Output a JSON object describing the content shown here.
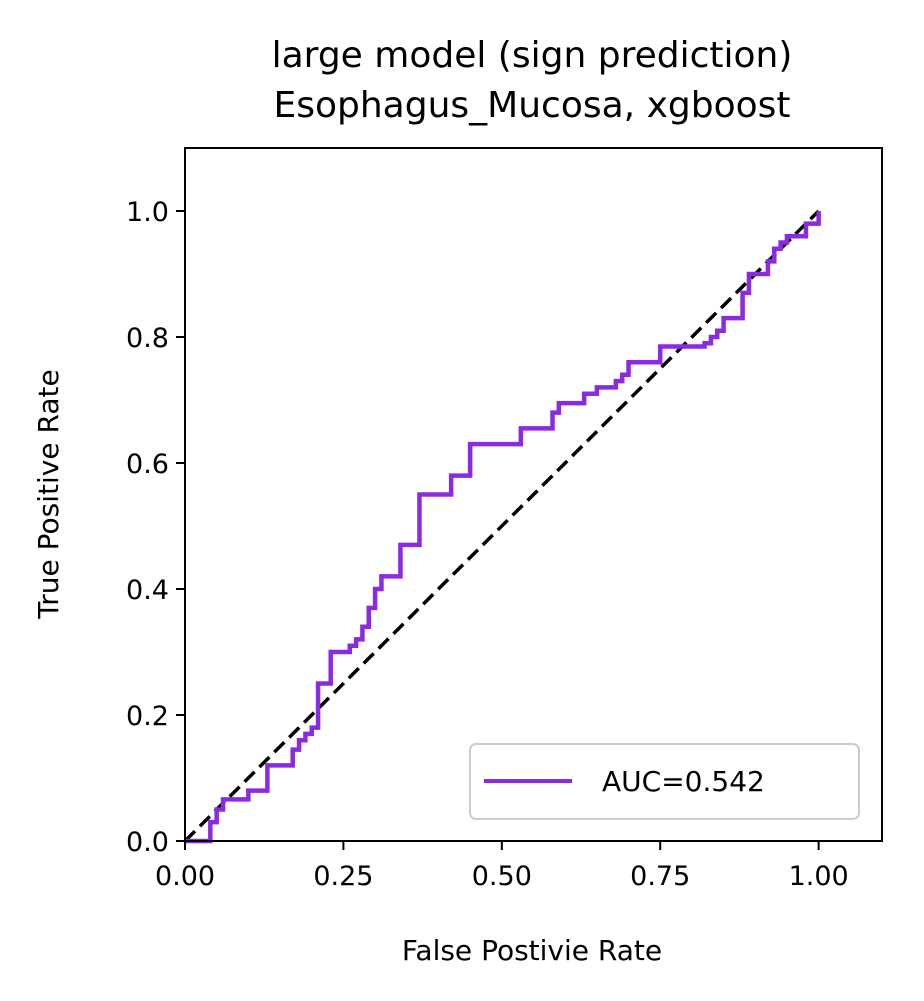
{
  "chart_data": {
    "type": "line",
    "title_line1": "large model (sign prediction)",
    "title_line2": "Esophagus_Mucosa, xgboost",
    "xlabel": "False Postivie Rate",
    "ylabel": "True Positive Rate",
    "xlim": [
      0.0,
      1.1
    ],
    "ylim": [
      0.0,
      1.1
    ],
    "xticks": [
      0.0,
      0.25,
      0.5,
      0.75,
      1.0
    ],
    "xtick_labels": [
      "0.00",
      "0.25",
      "0.50",
      "0.75",
      "1.00"
    ],
    "yticks": [
      0.0,
      0.2,
      0.4,
      0.6,
      0.8,
      1.0
    ],
    "ytick_labels": [
      "0.0",
      "0.2",
      "0.4",
      "0.6",
      "0.8",
      "1.0"
    ],
    "grid": false,
    "legend_position": "lower-right",
    "series": [
      {
        "name": "AUC=0.542",
        "color": "#8a2be2",
        "style": "step",
        "x": [
          0.0,
          0.02,
          0.04,
          0.04,
          0.05,
          0.05,
          0.06,
          0.06,
          0.1,
          0.1,
          0.13,
          0.13,
          0.17,
          0.17,
          0.18,
          0.18,
          0.19,
          0.19,
          0.2,
          0.2,
          0.21,
          0.21,
          0.23,
          0.23,
          0.26,
          0.26,
          0.27,
          0.27,
          0.28,
          0.28,
          0.29,
          0.29,
          0.3,
          0.3,
          0.31,
          0.31,
          0.34,
          0.34,
          0.37,
          0.37,
          0.42,
          0.42,
          0.45,
          0.45,
          0.53,
          0.53,
          0.58,
          0.58,
          0.59,
          0.59,
          0.63,
          0.63,
          0.65,
          0.65,
          0.68,
          0.68,
          0.69,
          0.69,
          0.7,
          0.7,
          0.75,
          0.75,
          0.82,
          0.82,
          0.83,
          0.83,
          0.84,
          0.84,
          0.85,
          0.85,
          0.88,
          0.88,
          0.89,
          0.89,
          0.92,
          0.92,
          0.93,
          0.93,
          0.94,
          0.94,
          0.95,
          0.95,
          0.98,
          0.98,
          1.0,
          1.0
        ],
        "y": [
          0.0,
          0.0,
          0.0,
          0.03,
          0.03,
          0.05,
          0.05,
          0.066,
          0.066,
          0.08,
          0.08,
          0.12,
          0.12,
          0.145,
          0.145,
          0.16,
          0.16,
          0.17,
          0.17,
          0.18,
          0.18,
          0.25,
          0.25,
          0.3,
          0.3,
          0.31,
          0.31,
          0.32,
          0.32,
          0.34,
          0.34,
          0.37,
          0.37,
          0.4,
          0.4,
          0.42,
          0.42,
          0.47,
          0.47,
          0.55,
          0.55,
          0.58,
          0.58,
          0.63,
          0.63,
          0.655,
          0.655,
          0.68,
          0.68,
          0.695,
          0.695,
          0.71,
          0.71,
          0.72,
          0.72,
          0.73,
          0.73,
          0.74,
          0.74,
          0.76,
          0.76,
          0.785,
          0.785,
          0.79,
          0.79,
          0.8,
          0.8,
          0.81,
          0.81,
          0.83,
          0.83,
          0.87,
          0.87,
          0.9,
          0.9,
          0.92,
          0.92,
          0.94,
          0.94,
          0.95,
          0.95,
          0.96,
          0.96,
          0.98,
          0.98,
          1.0
        ]
      },
      {
        "name": "",
        "color": "#000000",
        "style": "dashed",
        "x": [
          0.0,
          1.0
        ],
        "y": [
          0.0,
          1.0
        ]
      }
    ]
  }
}
